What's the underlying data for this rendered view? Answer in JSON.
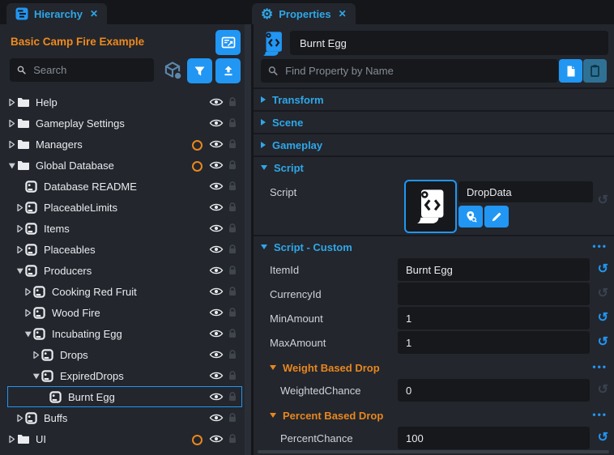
{
  "colors": {
    "accent_blue": "#2196f3",
    "text_blue": "#2fa7e8",
    "orange": "#e8871e",
    "panel": "#23262d",
    "input": "#16181c"
  },
  "icons": {
    "close_glyph": "✕",
    "menu_dots": "•••",
    "reset_glyph": "↺",
    "gear_glyph": "⚙",
    "hierarchy_tab": "list-tree-icon",
    "properties_tab": "gear-icon",
    "left_buttons": [
      "scenes-icon",
      "cube-network-icon",
      "filter-icon",
      "upload-icon"
    ],
    "row_icons": [
      "folder-icon",
      "script-icon",
      "eye-icon",
      "lock-icon",
      "network-ring-icon"
    ]
  },
  "hierarchy": {
    "tab": "Hierarchy",
    "title": "Basic Camp Fire Example",
    "search_placeholder": "Search",
    "rows": [
      {
        "label": "Help",
        "icon": "folder",
        "expand": "collapsed",
        "level": 0,
        "networked": false,
        "selected": false
      },
      {
        "label": "Gameplay Settings",
        "icon": "folder",
        "expand": "collapsed",
        "level": 0,
        "networked": false,
        "selected": false
      },
      {
        "label": "Managers",
        "icon": "folder",
        "expand": "collapsed",
        "level": 0,
        "networked": true,
        "selected": false
      },
      {
        "label": "Global Database",
        "icon": "folder",
        "expand": "expanded",
        "level": 0,
        "networked": true,
        "selected": false
      },
      {
        "label": "Database README",
        "icon": "script",
        "expand": "none",
        "level": 1,
        "networked": false,
        "selected": false
      },
      {
        "label": "PlaceableLimits",
        "icon": "script",
        "expand": "collapsed",
        "level": 1,
        "networked": false,
        "selected": false
      },
      {
        "label": "Items",
        "icon": "script",
        "expand": "collapsed",
        "level": 1,
        "networked": false,
        "selected": false
      },
      {
        "label": "Placeables",
        "icon": "script",
        "expand": "collapsed",
        "level": 1,
        "networked": false,
        "selected": false
      },
      {
        "label": "Producers",
        "icon": "script",
        "expand": "expanded",
        "level": 1,
        "networked": false,
        "selected": false
      },
      {
        "label": "Cooking Red Fruit",
        "icon": "script",
        "expand": "collapsed",
        "level": 2,
        "networked": false,
        "selected": false
      },
      {
        "label": "Wood Fire",
        "icon": "script",
        "expand": "collapsed",
        "level": 2,
        "networked": false,
        "selected": false
      },
      {
        "label": "Incubating Egg",
        "icon": "script",
        "expand": "expanded",
        "level": 2,
        "networked": false,
        "selected": false
      },
      {
        "label": "Drops",
        "icon": "script",
        "expand": "collapsed",
        "level": 3,
        "networked": false,
        "selected": false
      },
      {
        "label": "ExpiredDrops",
        "icon": "script",
        "expand": "expanded",
        "level": 3,
        "networked": false,
        "selected": false
      },
      {
        "label": "Burnt Egg",
        "icon": "script",
        "expand": "none",
        "level": 4,
        "networked": false,
        "selected": true
      },
      {
        "label": "Buffs",
        "icon": "script",
        "expand": "collapsed",
        "level": 1,
        "networked": false,
        "selected": false
      },
      {
        "label": "UI",
        "icon": "folder",
        "expand": "collapsed",
        "level": 0,
        "networked": true,
        "selected": false
      },
      {
        "label": "",
        "icon": "folder",
        "expand": "none",
        "level": 1,
        "networked": false,
        "selected": false
      }
    ]
  },
  "properties": {
    "tab": "Properties",
    "name_value": "Burnt Egg",
    "search_placeholder": "Find Property by Name",
    "sections": [
      {
        "label": "Transform"
      },
      {
        "label": "Scene"
      },
      {
        "label": "Gameplay"
      }
    ],
    "script_section": {
      "title": "Script",
      "field_label": "Script",
      "script_name": "DropData",
      "reset": "off"
    },
    "custom_section": {
      "title": "Script - Custom",
      "fields": [
        {
          "label": "ItemId",
          "value": "Burnt Egg",
          "reset": "on"
        },
        {
          "label": "CurrencyId",
          "value": "",
          "reset": "off"
        },
        {
          "label": "MinAmount",
          "value": "1",
          "reset": "on"
        },
        {
          "label": "MaxAmount",
          "value": "1",
          "reset": "on"
        }
      ],
      "groups": [
        {
          "title": "Weight Based Drop",
          "fields": [
            {
              "label": "WeightedChance",
              "value": "0",
              "reset": "off"
            }
          ]
        },
        {
          "title": "Percent Based Drop",
          "fields": [
            {
              "label": "PercentChance",
              "value": "100",
              "reset": "on"
            }
          ]
        }
      ]
    }
  }
}
